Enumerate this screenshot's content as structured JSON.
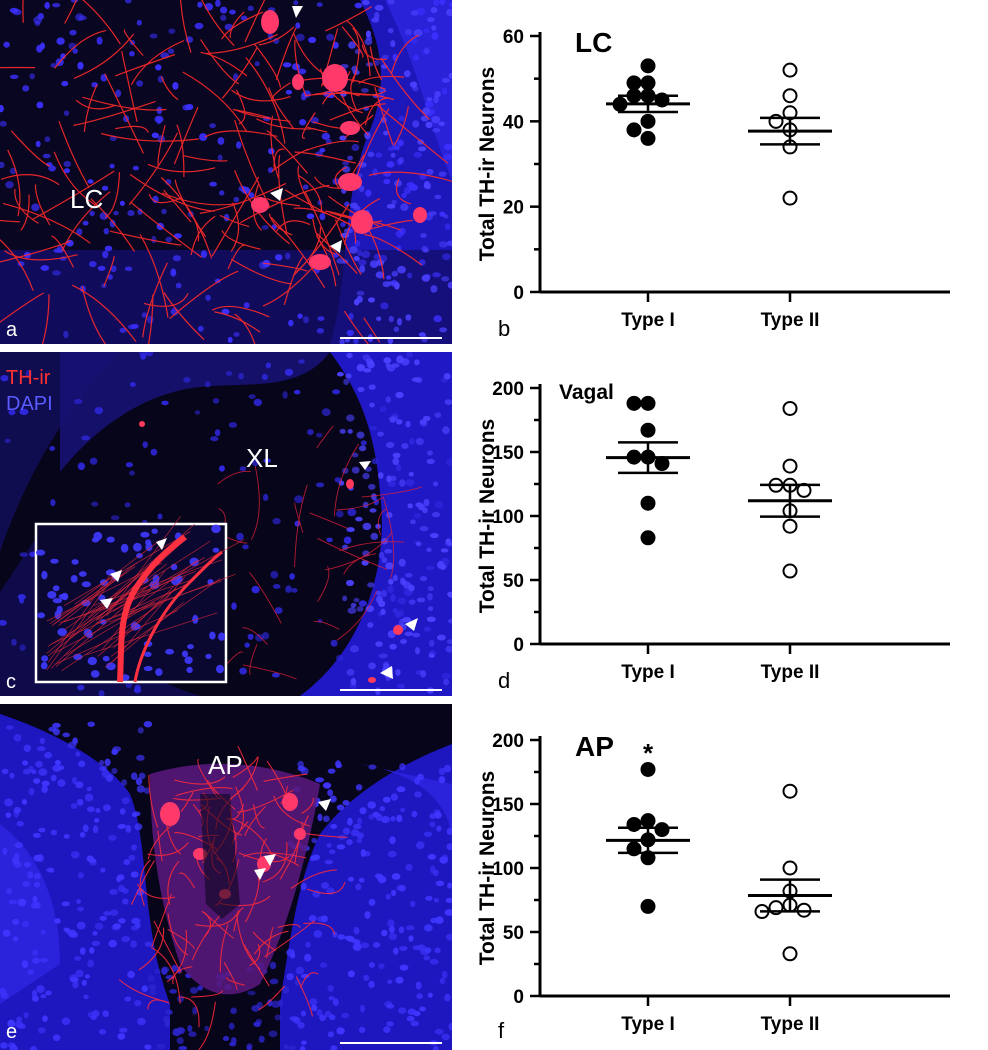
{
  "figure": {
    "panels": [
      {
        "letter": "a",
        "region": "LC"
      },
      {
        "letter": "c",
        "region": "XL",
        "legend": [
          {
            "text": "TH-ir",
            "color": "#ff3030"
          },
          {
            "text": "DAPI",
            "color": "#5a5aff"
          }
        ]
      },
      {
        "letter": "e",
        "region": "AP"
      }
    ]
  },
  "colors": {
    "th_ir": "#ff2a2a",
    "dapi": "#2a1ee6",
    "background": "#07061c"
  },
  "chart_data": [
    {
      "type": "scatter",
      "panel_letter": "b",
      "title": "LC",
      "ylabel": "Total TH-ir Neurons",
      "categories": [
        "Type I",
        "Type II"
      ],
      "ylim": [
        0,
        60
      ],
      "yticks": [
        0,
        20,
        40,
        60
      ],
      "annotation": "",
      "series": [
        {
          "values": [
            53,
            49,
            49,
            46,
            46,
            45,
            44,
            40,
            38,
            36
          ],
          "mean": 44.1,
          "sem": 1.9,
          "fill": "filled"
        },
        {
          "values": [
            52,
            46,
            42,
            40,
            38,
            34,
            22
          ],
          "mean": 37.7,
          "sem": 3.1,
          "fill": "open"
        }
      ]
    },
    {
      "type": "scatter",
      "panel_letter": "d",
      "title": "Vagal",
      "ylabel": "Total TH-ir Neurons",
      "categories": [
        "Type I",
        "Type II"
      ],
      "ylim": [
        0,
        200
      ],
      "yticks": [
        0,
        50,
        100,
        150,
        200
      ],
      "annotation": "",
      "series": [
        {
          "values": [
            188,
            188,
            167,
            146,
            146,
            141,
            110,
            83
          ],
          "mean": 145.6,
          "sem": 11.9,
          "fill": "filled"
        },
        {
          "values": [
            184,
            139,
            124,
            124,
            120,
            104,
            92,
            57
          ],
          "mean": 111.9,
          "sem": 12.4,
          "fill": "open"
        }
      ]
    },
    {
      "type": "scatter",
      "panel_letter": "f",
      "title": "AP",
      "ylabel": "Total TH-ir Neurons",
      "categories": [
        "Type I",
        "Type II"
      ],
      "ylim": [
        0,
        200
      ],
      "yticks": [
        0,
        50,
        100,
        150,
        200
      ],
      "annotation": "*",
      "series": [
        {
          "values": [
            177,
            137,
            134,
            130,
            122,
            115,
            108,
            70
          ],
          "mean": 121.6,
          "sem": 9.8,
          "fill": "filled"
        },
        {
          "values": [
            160,
            100,
            82,
            71,
            69,
            67,
            66,
            33
          ],
          "mean": 78.5,
          "sem": 12.4,
          "fill": "open"
        }
      ]
    }
  ]
}
